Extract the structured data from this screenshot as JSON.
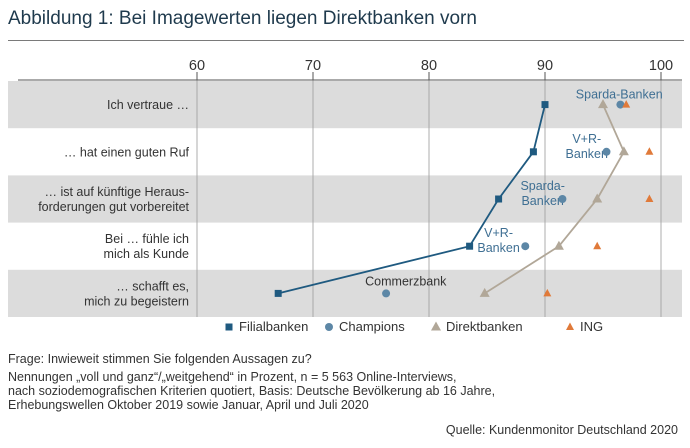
{
  "title": "Abbildung 1: Bei Imagewerten liegen Direktbanken vorn",
  "chart_data": {
    "type": "line",
    "orientation": "horizontal-categories",
    "categories": [
      [
        "Ich vertraue …"
      ],
      [
        "… hat einen guten Ruf"
      ],
      [
        "… ist auf künftige Heraus-",
        "forderungen gut vorbereitet"
      ],
      [
        "Bei … fühle ich",
        "mich als Kunde"
      ],
      [
        "… schafft es,",
        "mich zu begeistern"
      ]
    ],
    "x_ticks": [
      60,
      70,
      80,
      90,
      100
    ],
    "xlim": [
      58,
      100.5
    ],
    "grid": true,
    "legend_position": "bottom",
    "series": [
      {
        "name": "Filialbanken",
        "marker": "square",
        "color": "#1f5a80",
        "line": true,
        "values": [
          90,
          89,
          86,
          83.5,
          67
        ]
      },
      {
        "name": "Champions",
        "marker": "circle",
        "color": "#5d87a6",
        "line": false,
        "values": [
          96.5,
          95.3,
          91.5,
          88.3,
          76.3
        ]
      },
      {
        "name": "Direktbanken",
        "marker": "triangle",
        "color": "#b1a798",
        "line": true,
        "values": [
          95,
          96.8,
          94.5,
          91.2,
          84.8
        ]
      },
      {
        "name": "ING",
        "marker": "triangle-small",
        "color": "#e07a3a",
        "line": false,
        "values": [
          97,
          99,
          99,
          94.5,
          90.2
        ]
      }
    ],
    "annotations": [
      {
        "text": [
          "Sparda-Banken"
        ],
        "x": 96.4,
        "row": 0,
        "color": "#3f6f93"
      },
      {
        "text": [
          "V+R-",
          "Banken"
        ],
        "x": 93.6,
        "row": 1,
        "color": "#3f6f93"
      },
      {
        "text": [
          "Sparda-",
          "Banken"
        ],
        "x": 89.8,
        "row": 2,
        "color": "#3f6f93"
      },
      {
        "text": [
          "V+R-",
          "Banken"
        ],
        "x": 86,
        "row": 3,
        "color": "#3f6f93"
      },
      {
        "text": [
          "Commerzbank"
        ],
        "x": 78,
        "row": 4,
        "color": "#333333"
      }
    ]
  },
  "footer_lines": [
    "Frage: Inwieweit stimmen Sie folgenden Aussagen zu?",
    "Nennungen „voll und ganz“/„weitgehend“ in Prozent, n = 5 563 Online-Interviews,",
    "nach soziodemografischen Kriterien quotiert, Basis: Deutsche Bevölkerung ab 16 Jahre,",
    "Erhebungswellen Oktober 2019 sowie Januar, April und Juli 2020"
  ],
  "source": "Quelle: Kundenmonitor Deutschland 2020",
  "colors": {
    "band": "#dcdcdc",
    "title": "#1f3a4d",
    "rule": "#7a7a7a"
  }
}
